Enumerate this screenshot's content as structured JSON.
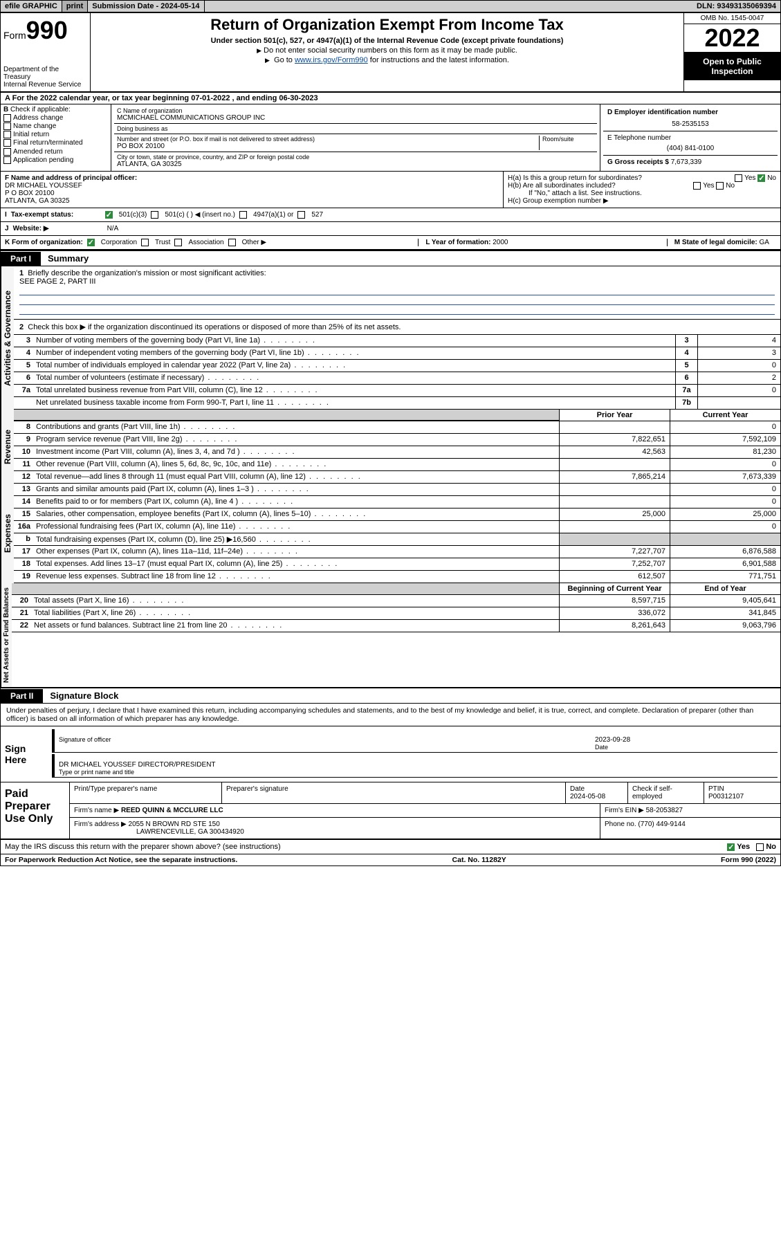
{
  "topbar": {
    "efile": "efile GRAPHIC",
    "print": "print",
    "sub_label": "Submission Date - ",
    "sub_date": "2024-05-14",
    "dln_label": "DLN: ",
    "dln": "93493135069394"
  },
  "header": {
    "form_prefix": "Form",
    "form_number": "990",
    "dept": "Department of the Treasury",
    "service": "Internal Revenue Service",
    "title": "Return of Organization Exempt From Income Tax",
    "subtitle": "Under section 501(c), 527, or 4947(a)(1) of the Internal Revenue Code (except private foundations)",
    "warn1": "Do not enter social security numbers on this form as it may be made public.",
    "warn2_pre": "Go to ",
    "warn2_link": "www.irs.gov/Form990",
    "warn2_post": " for instructions and the latest information.",
    "omb": "OMB No. 1545-0047",
    "year": "2022",
    "open": "Open to Public Inspection"
  },
  "A": {
    "text": "For the 2022 calendar year, or tax year beginning ",
    "begin": "07-01-2022",
    "mid": " , and ending ",
    "end": "06-30-2023"
  },
  "B": {
    "label": "Check if applicable:",
    "opts": [
      "Address change",
      "Name change",
      "Initial return",
      "Final return/terminated",
      "Amended return",
      "Application pending"
    ]
  },
  "C": {
    "name_lbl": "C Name of organization",
    "name": "MCMICHAEL COMMUNICATIONS GROUP INC",
    "dba_lbl": "Doing business as",
    "dba": "",
    "addr_lbl": "Number and street (or P.O. box if mail is not delivered to street address)",
    "room_lbl": "Room/suite",
    "addr": "PO BOX 20100",
    "city_lbl": "City or town, state or province, country, and ZIP or foreign postal code",
    "city": "ATLANTA, GA  30325"
  },
  "D": {
    "lbl": "D Employer identification number",
    "val": "58-2535153"
  },
  "E": {
    "lbl": "E Telephone number",
    "val": "(404) 841-0100"
  },
  "G": {
    "lbl": "G Gross receipts $ ",
    "val": "7,673,339"
  },
  "F": {
    "lbl": "F  Name and address of principal officer:",
    "name": "DR MICHAEL YOUSSEF",
    "addr1": "P O BOX 20100",
    "addr2": "ATLANTA, GA  30325"
  },
  "H": {
    "a_lbl": "H(a)  Is this a group return for subordinates?",
    "a_yes": "Yes",
    "a_no": "No",
    "b_lbl": "H(b)  Are all subordinates included?",
    "b_note": "If \"No,\" attach a list. See instructions.",
    "c_lbl": "H(c)  Group exemption number"
  },
  "I": {
    "lbl": "Tax-exempt status:",
    "o1": "501(c)(3)",
    "o2": "501(c) (  ) ◀ (insert no.)",
    "o3": "4947(a)(1) or",
    "o4": "527"
  },
  "J": {
    "lbl": "Website: ▶",
    "val": "N/A"
  },
  "K": {
    "lbl": "K Form of organization:",
    "o1": "Corporation",
    "o2": "Trust",
    "o3": "Association",
    "o4": "Other ▶"
  },
  "L": {
    "lbl": "L Year of formation: ",
    "val": "2000"
  },
  "M": {
    "lbl": "M State of legal domicile: ",
    "val": "GA"
  },
  "parts": {
    "p1": "Part I",
    "p1_title": "Summary",
    "p2": "Part II",
    "p2_title": "Signature Block"
  },
  "sections": {
    "s1": "Activities & Governance",
    "s2": "Revenue",
    "s3": "Expenses",
    "s4": "Net Assets or Fund Balances"
  },
  "mission": {
    "line1_lbl": "1",
    "line1": "Briefly describe the organization's mission or most significant activities:",
    "text": "SEE PAGE 2, PART III",
    "line2_lbl": "2",
    "line2": "Check this box ▶        if the organization discontinued its operations or disposed of more than 25% of its net assets."
  },
  "col_headers": {
    "prior": "Prior Year",
    "current": "Current Year",
    "boy": "Beginning of Current Year",
    "eoy": "End of Year"
  },
  "gov_lines": [
    {
      "n": "3",
      "d": "Number of voting members of the governing body (Part VI, line 1a)",
      "bn": "3",
      "v": "4"
    },
    {
      "n": "4",
      "d": "Number of independent voting members of the governing body (Part VI, line 1b)",
      "bn": "4",
      "v": "3"
    },
    {
      "n": "5",
      "d": "Total number of individuals employed in calendar year 2022 (Part V, line 2a)",
      "bn": "5",
      "v": "0"
    },
    {
      "n": "6",
      "d": "Total number of volunteers (estimate if necessary)",
      "bn": "6",
      "v": "2"
    },
    {
      "n": "7a",
      "d": "Total unrelated business revenue from Part VIII, column (C), line 12",
      "bn": "7a",
      "v": "0"
    },
    {
      "n": "",
      "d": "Net unrelated business taxable income from Form 990-T, Part I, line 11",
      "bn": "7b",
      "v": ""
    }
  ],
  "rev_lines": [
    {
      "n": "8",
      "d": "Contributions and grants (Part VIII, line 1h)",
      "p": "",
      "c": "0"
    },
    {
      "n": "9",
      "d": "Program service revenue (Part VIII, line 2g)",
      "p": "7,822,651",
      "c": "7,592,109"
    },
    {
      "n": "10",
      "d": "Investment income (Part VIII, column (A), lines 3, 4, and 7d )",
      "p": "42,563",
      "c": "81,230"
    },
    {
      "n": "11",
      "d": "Other revenue (Part VIII, column (A), lines 5, 6d, 8c, 9c, 10c, and 11e)",
      "p": "",
      "c": "0"
    },
    {
      "n": "12",
      "d": "Total revenue—add lines 8 through 11 (must equal Part VIII, column (A), line 12)",
      "p": "7,865,214",
      "c": "7,673,339"
    }
  ],
  "exp_lines": [
    {
      "n": "13",
      "d": "Grants and similar amounts paid (Part IX, column (A), lines 1–3 )",
      "p": "",
      "c": "0"
    },
    {
      "n": "14",
      "d": "Benefits paid to or for members (Part IX, column (A), line 4 )",
      "p": "",
      "c": "0"
    },
    {
      "n": "15",
      "d": "Salaries, other compensation, employee benefits (Part IX, column (A), lines 5–10)",
      "p": "25,000",
      "c": "25,000"
    },
    {
      "n": "16a",
      "d": "Professional fundraising fees (Part IX, column (A), line 11e)",
      "p": "",
      "c": "0"
    },
    {
      "n": "b",
      "d": "Total fundraising expenses (Part IX, column (D), line 25) ▶16,560",
      "p": "—shade—",
      "c": "—shade—"
    },
    {
      "n": "17",
      "d": "Other expenses (Part IX, column (A), lines 11a–11d, 11f–24e)",
      "p": "7,227,707",
      "c": "6,876,588"
    },
    {
      "n": "18",
      "d": "Total expenses. Add lines 13–17 (must equal Part IX, column (A), line 25)",
      "p": "7,252,707",
      "c": "6,901,588"
    },
    {
      "n": "19",
      "d": "Revenue less expenses. Subtract line 18 from line 12",
      "p": "612,507",
      "c": "771,751"
    }
  ],
  "net_lines": [
    {
      "n": "20",
      "d": "Total assets (Part X, line 16)",
      "p": "8,597,715",
      "c": "9,405,641"
    },
    {
      "n": "21",
      "d": "Total liabilities (Part X, line 26)",
      "p": "336,072",
      "c": "341,845"
    },
    {
      "n": "22",
      "d": "Net assets or fund balances. Subtract line 21 from line 20",
      "p": "8,261,643",
      "c": "9,063,796"
    }
  ],
  "penalty": "Under penalties of perjury, I declare that I have examined this return, including accompanying schedules and statements, and to the best of my knowledge and belief, it is true, correct, and complete. Declaration of preparer (other than officer) is based on all information of which preparer has any knowledge.",
  "sign": {
    "lbl": "Sign Here",
    "sig_lbl": "Signature of officer",
    "date_lbl": "Date",
    "date": "2023-09-28",
    "name": "DR MICHAEL YOUSSEF  DIRECTOR/PRESIDENT",
    "name_lbl": "Type or print name and title"
  },
  "paid": {
    "lbl": "Paid Preparer Use Only",
    "h1": "Print/Type preparer's name",
    "h2": "Preparer's signature",
    "h3": "Date",
    "h3v": "2024-05-08",
    "h4": "Check        if self-employed",
    "h5": "PTIN",
    "h5v": "P00312107",
    "firm_lbl": "Firm's name    ▶",
    "firm": "REED QUINN & MCCLURE LLC",
    "ein_lbl": "Firm's EIN ▶",
    "ein": "58-2053827",
    "addr_lbl": "Firm's address ▶",
    "addr1": "2055 N BROWN RD STE 150",
    "addr2": "LAWRENCEVILLE, GA  300434920",
    "phone_lbl": "Phone no. ",
    "phone": "(770) 449-9144"
  },
  "discuss": {
    "q": "May the IRS discuss this return with the preparer shown above? (see instructions)",
    "yes": "Yes",
    "no": "No"
  },
  "footer": {
    "left": "For Paperwork Reduction Act Notice, see the separate instructions.",
    "center": "Cat. No. 11282Y",
    "right": "Form 990 (2022)"
  }
}
